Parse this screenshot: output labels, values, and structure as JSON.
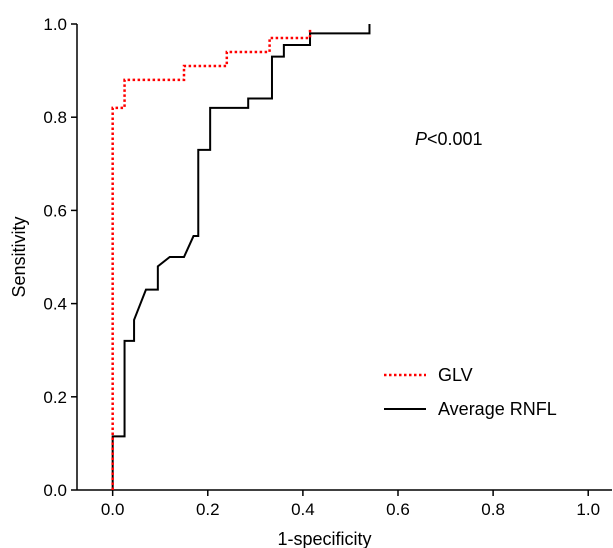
{
  "chart_data": {
    "type": "line",
    "title": "",
    "xlabel": "1-specificity",
    "ylabel": "Sensitivity",
    "xlim": [
      -0.075,
      1.05
    ],
    "ylim": [
      0,
      1.0
    ],
    "x_ticks": [
      "0.0",
      "0.2",
      "0.4",
      "0.6",
      "0.8",
      "1.0"
    ],
    "x_tick_values": [
      0,
      0.2,
      0.4,
      0.6,
      0.8,
      1.0
    ],
    "y_ticks": [
      "0.0",
      "0.2",
      "0.4",
      "0.6",
      "0.8",
      "1.0"
    ],
    "y_tick_values": [
      0,
      0.2,
      0.4,
      0.6,
      0.8,
      1.0
    ],
    "grid": false,
    "legend_position": "bottom-right",
    "annotation": {
      "italic": "P",
      "rest": "<0.001"
    },
    "series": [
      {
        "name": "GLV",
        "color": "#ff0000",
        "style": "dotted",
        "points": [
          [
            0,
            0
          ],
          [
            0,
            0.82
          ],
          [
            0.025,
            0.82
          ],
          [
            0.025,
            0.88
          ],
          [
            0.15,
            0.88
          ],
          [
            0.15,
            0.91
          ],
          [
            0.24,
            0.91
          ],
          [
            0.24,
            0.94
          ],
          [
            0.33,
            0.94
          ],
          [
            0.33,
            0.97
          ],
          [
            0.415,
            0.97
          ],
          [
            0.415,
            0.99
          ]
        ]
      },
      {
        "name": "Average RNFL",
        "color": "#000000",
        "style": "solid",
        "points": [
          [
            0,
            0
          ],
          [
            0,
            0.115
          ],
          [
            0.025,
            0.115
          ],
          [
            0.025,
            0.32
          ],
          [
            0.045,
            0.32
          ],
          [
            0.045,
            0.365
          ],
          [
            0.07,
            0.43
          ],
          [
            0.095,
            0.43
          ],
          [
            0.095,
            0.48
          ],
          [
            0.12,
            0.5
          ],
          [
            0.15,
            0.5
          ],
          [
            0.17,
            0.545
          ],
          [
            0.18,
            0.545
          ],
          [
            0.18,
            0.73
          ],
          [
            0.205,
            0.73
          ],
          [
            0.205,
            0.82
          ],
          [
            0.285,
            0.82
          ],
          [
            0.285,
            0.84
          ],
          [
            0.335,
            0.84
          ],
          [
            0.335,
            0.93
          ],
          [
            0.36,
            0.93
          ],
          [
            0.36,
            0.955
          ],
          [
            0.415,
            0.955
          ],
          [
            0.415,
            0.98
          ],
          [
            0.54,
            0.98
          ],
          [
            0.54,
            1.0
          ]
        ]
      }
    ]
  }
}
